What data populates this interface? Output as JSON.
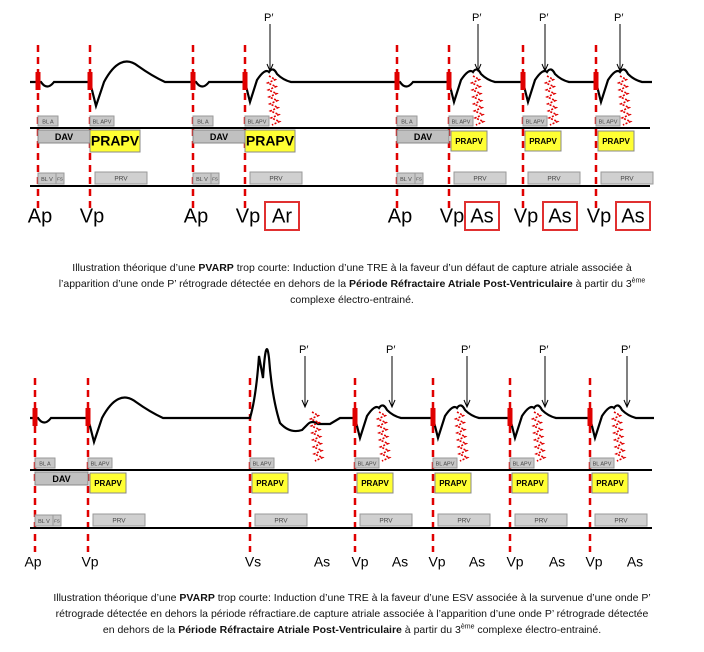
{
  "labels": {
    "dav": "DAV",
    "prapv": "PRAPV",
    "prv": "PRV",
    "bl_a": "BL A",
    "bl_apv": "BL APV",
    "bl_v": "BL V",
    "fs": "FS"
  },
  "panels": [
    {
      "p_labels": [
        "P′",
        "P′",
        "P′",
        "P′"
      ],
      "bottom_labels": [
        "Ap",
        "Vp",
        "Ap",
        "Vp",
        "Ar",
        "Ap",
        "Vp",
        "As",
        "Vp",
        "As",
        "Vp",
        "As"
      ],
      "caption": [
        [
          {
            "text": "Illustration théorique d’une "
          },
          {
            "text": "PVARP",
            "style": "bold"
          },
          {
            "text": " trop courte: Induction d’une TRE à la faveur d’un défaut de capture atriale associée à"
          }
        ],
        [
          {
            "text": "l’apparition d’une onde P’ rétrograde détectée en dehors de la "
          },
          {
            "text": "Période Réfractaire Atriale Post-Ventriculaire",
            "style": "bold"
          },
          {
            "text": " à partir du 3"
          },
          {
            "text": "ème",
            "style": "sup"
          }
        ],
        [
          {
            "text": "complexe électro-entrainé."
          }
        ]
      ]
    },
    {
      "p_labels": [
        "P′",
        "P′",
        "P′",
        "P′",
        "P′"
      ],
      "bottom_labels": [
        "Ap",
        "Vp",
        "Vs",
        "As",
        "Vp",
        "As",
        "Vp",
        "As",
        "Vp",
        "As",
        "Vp",
        "As"
      ],
      "caption": [
        [
          {
            "text": "Illustration théorique d’une "
          },
          {
            "text": "PVARP",
            "style": "bold"
          },
          {
            "text": " trop courte: Induction d’une TRE à la faveur d’une ESV associée à la survenue d’une onde P’"
          }
        ],
        [
          {
            "text": "rétrograde détectée en dehors la période réfractiare.de capture atriale associée à l’apparition d’une onde P’ rétrograde détectée"
          }
        ],
        [
          {
            "text": "en dehors de la "
          },
          {
            "text": "Période Réfractaire Atriale Post-Ventriculaire",
            "style": "bold"
          },
          {
            "text": " à partir du 3"
          },
          {
            "text": "ème",
            "style": "sup"
          },
          {
            "text": " complexe électro-entrainé."
          }
        ]
      ]
    }
  ]
}
